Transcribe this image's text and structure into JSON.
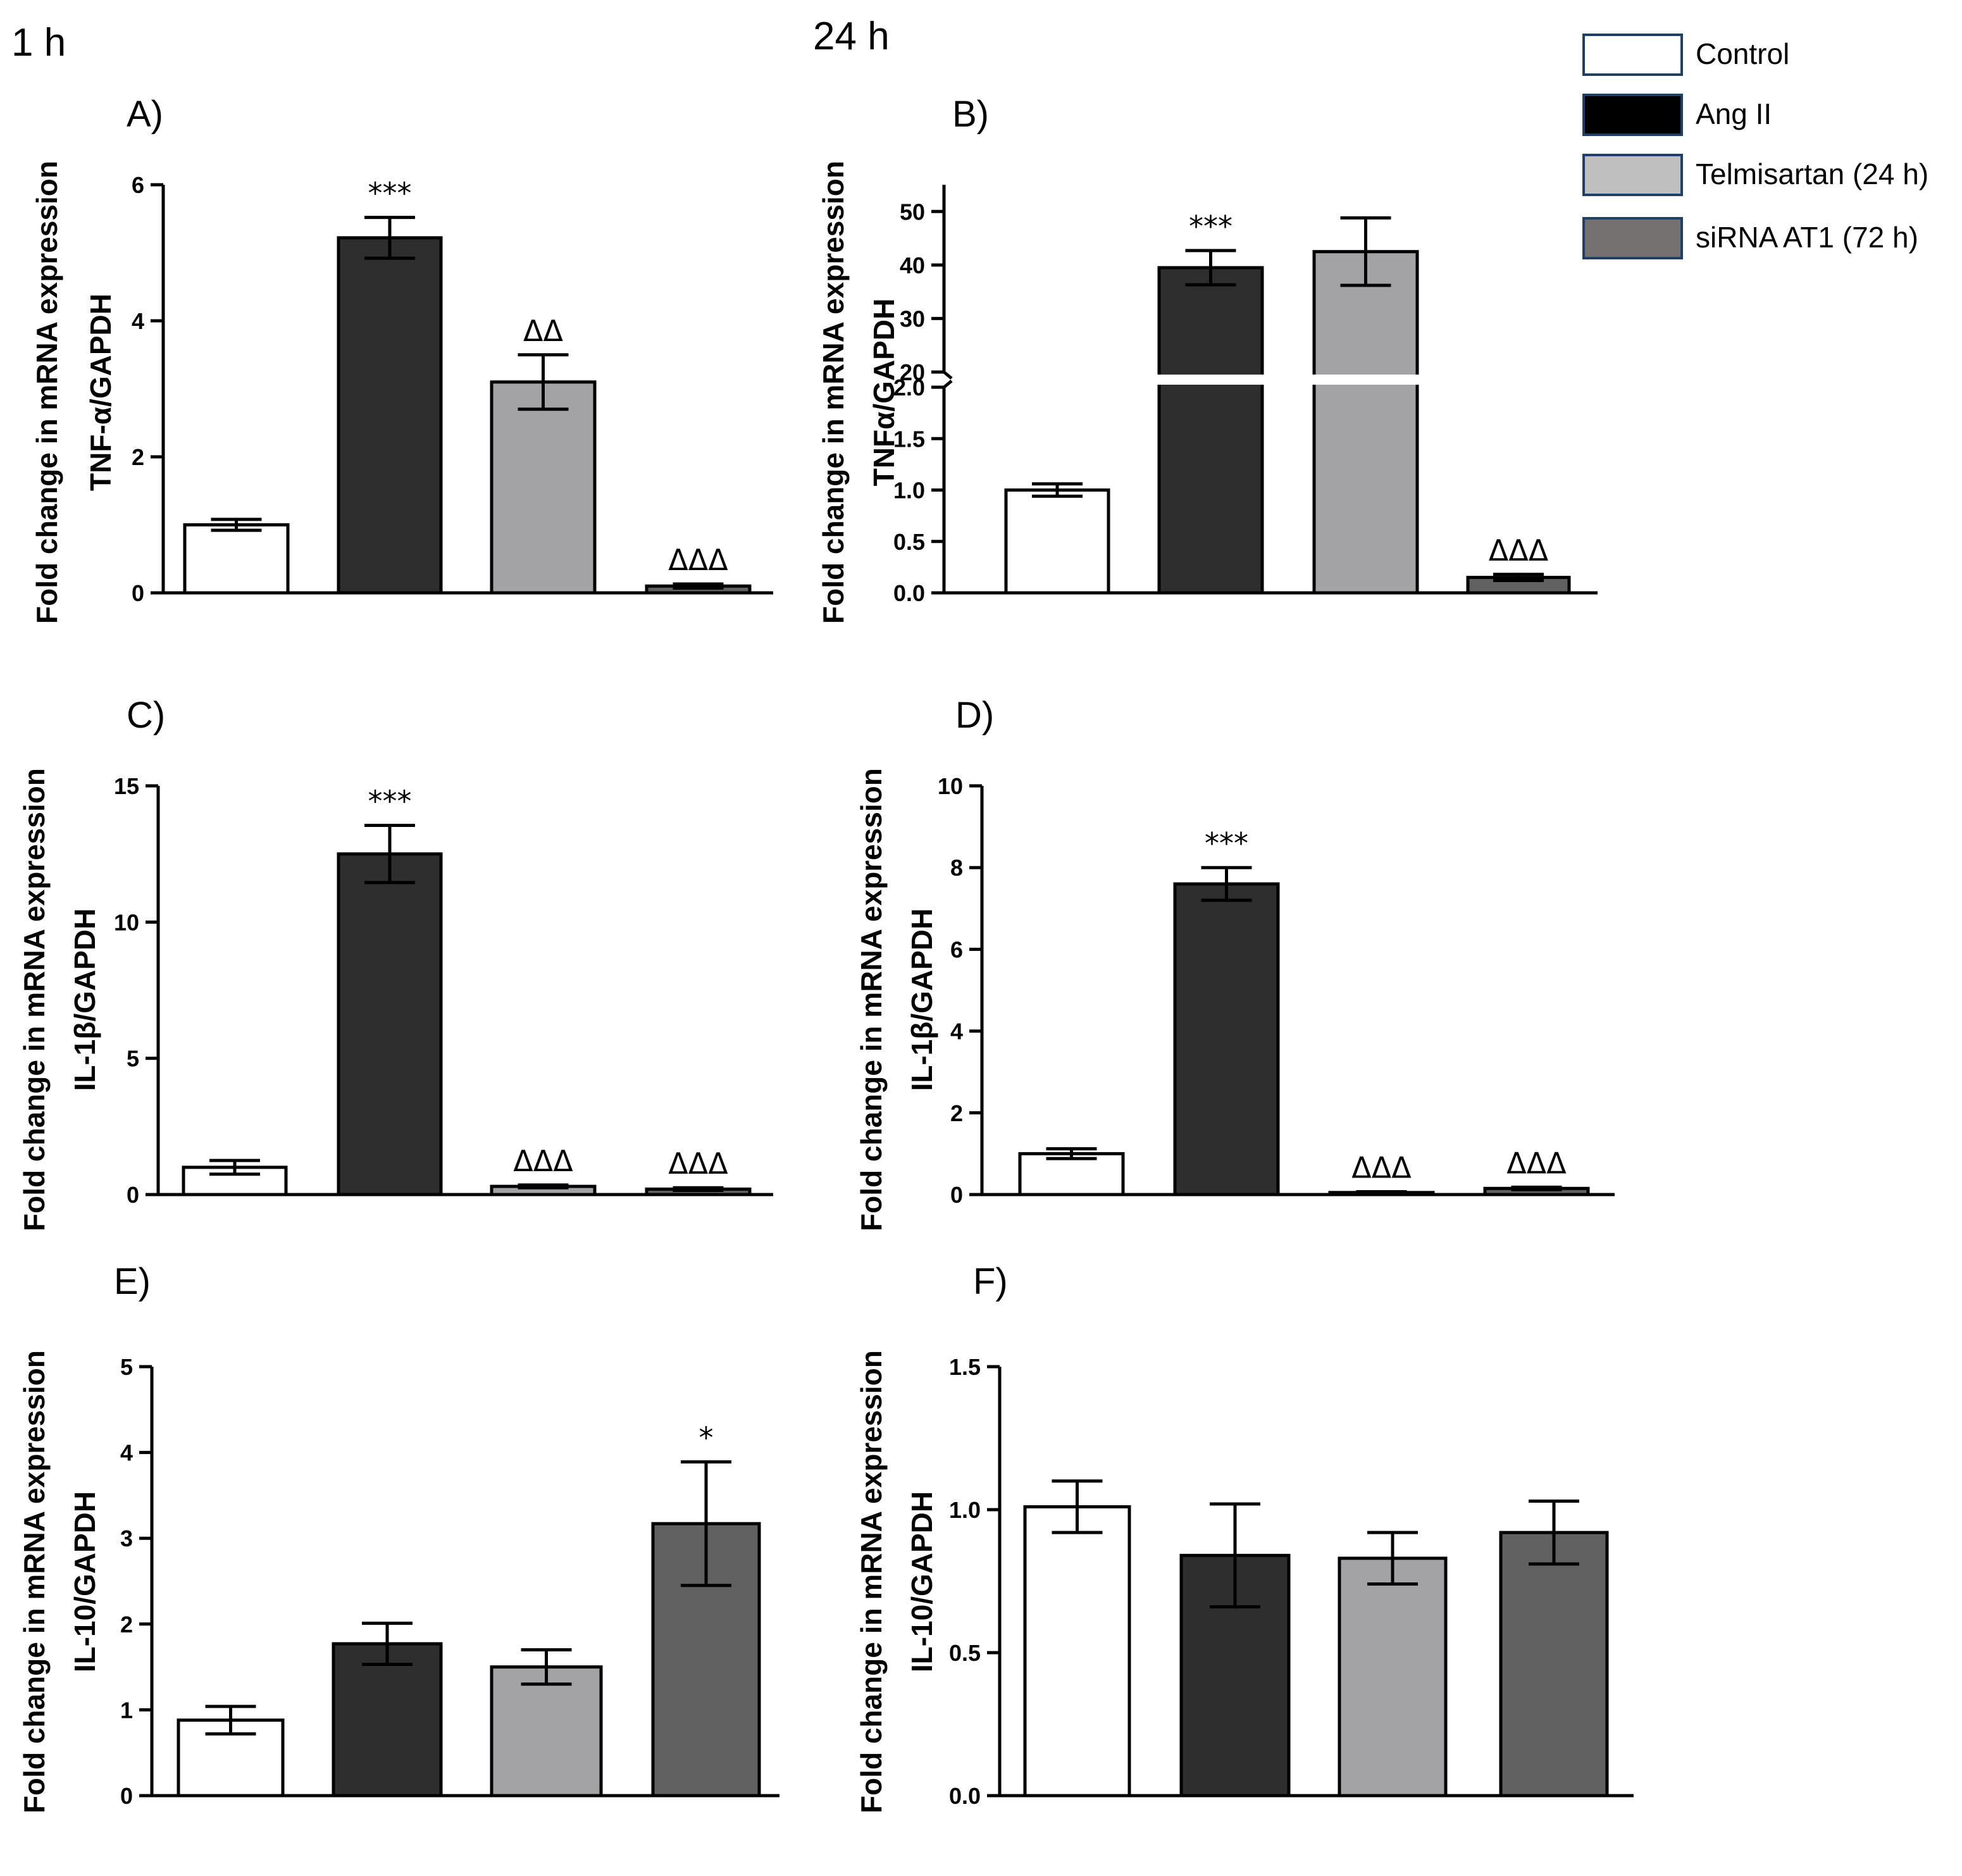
{
  "time_labels": [
    "1 h",
    "24 h"
  ],
  "legend": [
    {
      "label": "Control",
      "color": "#ffffff",
      "border": "#1f3f66"
    },
    {
      "label": "Ang II",
      "color": "#000000",
      "border": "#1f3f66"
    },
    {
      "label": "Telmisartan (24 h)",
      "color": "#bfbfbf",
      "border": "#1f3f66"
    },
    {
      "label": "siRNA AT1 (72 h)",
      "color": "#767171",
      "border": "#1f3f66"
    }
  ],
  "bar_colors": [
    "#ffffff",
    "#2e2e2e",
    "#a3a3a6",
    "#616161"
  ],
  "chart_data": [
    {
      "id": "A",
      "panel_label": "A)",
      "type": "bar",
      "categories": [
        "Control",
        "Ang II",
        "Telmisartan (24 h)",
        "siRNA AT1 (72 h)"
      ],
      "ylabel_line1": "Fold change in mRNA expression",
      "ylabel_line2": "TNF-α/GAPDH",
      "ylim": [
        0,
        6
      ],
      "ticks": [
        0,
        2,
        4,
        6
      ],
      "tick_labels": [
        "0",
        "2",
        "4",
        "6"
      ],
      "values": [
        1.0,
        5.22,
        3.1,
        0.1
      ],
      "errors": [
        0.08,
        0.3,
        0.4,
        0.03
      ],
      "significance": [
        "",
        "***",
        "ΔΔ",
        "ΔΔΔ"
      ]
    },
    {
      "id": "B",
      "panel_label": "B)",
      "type": "bar",
      "categories": [
        "Control",
        "Ang II",
        "Telmisartan (24 h)",
        "siRNA AT1 (72 h)"
      ],
      "ylabel_line1": "Fold change in mRNA expression",
      "ylabel_line2": "TNFα/GAPDH",
      "broken_axis": true,
      "lower_ylim": [
        0,
        2.0
      ],
      "lower_ticks": [
        0,
        0.5,
        1.0,
        1.5,
        2.0
      ],
      "lower_tick_labels": [
        "0.0",
        "0.5",
        "1.0",
        "1.5",
        "2.0"
      ],
      "upper_ylim": [
        20,
        55
      ],
      "upper_ticks": [
        20,
        30,
        40,
        50
      ],
      "upper_tick_labels": [
        "20",
        "30",
        "40",
        "50"
      ],
      "values": [
        1.0,
        39.5,
        42.5,
        0.15
      ],
      "errors": [
        0.06,
        3.2,
        6.3,
        0.03
      ],
      "significance": [
        "",
        "***",
        "",
        "ΔΔΔ"
      ]
    },
    {
      "id": "C",
      "panel_label": "C)",
      "type": "bar",
      "categories": [
        "Control",
        "Ang II",
        "Telmisartan (24 h)",
        "siRNA AT1 (72 h)"
      ],
      "ylabel_line1": "Fold change in mRNA expression",
      "ylabel_line2": "IL-1β/GAPDH",
      "ylim": [
        0,
        15
      ],
      "ticks": [
        0,
        5,
        10,
        15
      ],
      "tick_labels": [
        "0",
        "5",
        "10",
        "15"
      ],
      "values": [
        1.0,
        12.5,
        0.3,
        0.2
      ],
      "errors": [
        0.25,
        1.05,
        0.05,
        0.05
      ],
      "significance": [
        "",
        "***",
        "ΔΔΔ",
        "ΔΔΔ"
      ]
    },
    {
      "id": "D",
      "panel_label": "D)",
      "type": "bar",
      "categories": [
        "Control",
        "Ang II",
        "Telmisartan (24 h)",
        "siRNA AT1 (72 h)"
      ],
      "ylabel_line1": "Fold change in mRNA expression",
      "ylabel_line2": "IL-1β/GAPDH",
      "ylim": [
        0,
        10
      ],
      "ticks": [
        0,
        2,
        4,
        6,
        8,
        10
      ],
      "tick_labels": [
        "0",
        "2",
        "4",
        "6",
        "8",
        "10"
      ],
      "values": [
        1.0,
        7.6,
        0.05,
        0.15
      ],
      "errors": [
        0.12,
        0.4,
        0.02,
        0.03
      ],
      "significance": [
        "",
        "***",
        "ΔΔΔ",
        "ΔΔΔ"
      ]
    },
    {
      "id": "E",
      "panel_label": "E)",
      "type": "bar",
      "categories": [
        "Control",
        "Ang II",
        "Telmisartan (24 h)",
        "siRNA AT1 (72 h)"
      ],
      "ylabel_line1": "Fold change in mRNA expression",
      "ylabel_line2": "IL-10/GAPDH",
      "ylim": [
        0,
        5
      ],
      "ticks": [
        0,
        1,
        2,
        3,
        4,
        5
      ],
      "tick_labels": [
        "0",
        "1",
        "2",
        "3",
        "4",
        "5"
      ],
      "values": [
        0.88,
        1.77,
        1.5,
        3.17
      ],
      "errors": [
        0.16,
        0.24,
        0.2,
        0.72
      ],
      "significance": [
        "",
        "",
        "",
        "*"
      ]
    },
    {
      "id": "F",
      "panel_label": "F)",
      "type": "bar",
      "categories": [
        "Control",
        "Ang II",
        "Telmisartan (24 h)",
        "siRNA AT1 (72 h)"
      ],
      "ylabel_line1": "Fold change in mRNA expression",
      "ylabel_line2": "IL-10/GAPDH",
      "ylim": [
        0,
        1.5
      ],
      "ticks": [
        0,
        0.5,
        1.0,
        1.5
      ],
      "tick_labels": [
        "0.0",
        "0.5",
        "1.0",
        "1.5"
      ],
      "values": [
        1.01,
        0.84,
        0.83,
        0.92
      ],
      "errors": [
        0.09,
        0.18,
        0.09,
        0.11
      ],
      "significance": [
        "",
        "",
        "",
        ""
      ]
    }
  ]
}
